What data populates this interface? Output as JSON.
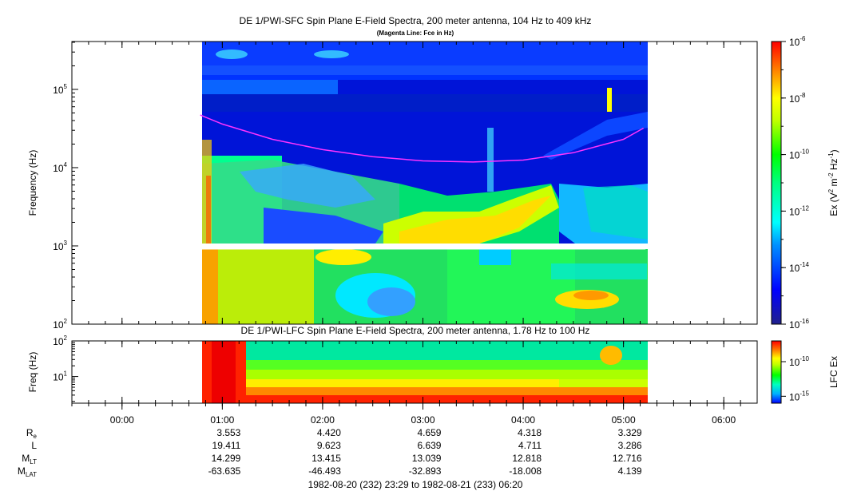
{
  "chart_data": [
    {
      "type": "heatmap",
      "title": "DE 1/PWI-SFC  Spin Plane E-Field Spectra, 200 meter antenna, 104 Hz to 409 kHz",
      "subtitle": "(Magenta Line: Fce in Hz)",
      "ylabel": "Frequency (Hz)",
      "yscale": "log",
      "ylim": [
        100,
        409000
      ],
      "y_ticks": [
        {
          "exp": "2",
          "value": 100
        },
        {
          "exp": "3",
          "value": 1000
        },
        {
          "exp": "4",
          "value": 10000
        },
        {
          "exp": "5",
          "value": 100000
        }
      ],
      "data_coverage_hours": [
        0.78,
        5.22
      ],
      "data_gap_hz": [
        900,
        1050
      ],
      "colorbar": {
        "label_pre": "Ex (V",
        "label_sup1": "2",
        "label_mid": " m",
        "label_sup2": "-2",
        "label_mid2": " Hz",
        "label_sup3": "-1",
        "label_post": ")",
        "scale": "log",
        "range": [
          1e-16,
          1e-06
        ],
        "ticks": [
          {
            "exp": "-6",
            "value": -6
          },
          {
            "exp": "-8",
            "value": -8
          },
          {
            "exp": "-10",
            "value": -10
          },
          {
            "exp": "-12",
            "value": -12
          },
          {
            "exp": "-14",
            "value": -14
          },
          {
            "exp": "-16",
            "value": -16
          }
        ]
      },
      "fce_line": {
        "color": "#ff33ff",
        "t_hours": [
          0.78,
          1.0,
          1.5,
          2.0,
          2.5,
          3.0,
          3.5,
          4.0,
          4.5,
          5.0,
          5.2
        ],
        "f_hz": [
          47000,
          36000,
          23000,
          17000,
          13800,
          12200,
          11800,
          12500,
          15500,
          23000,
          32000
        ]
      }
    },
    {
      "type": "heatmap",
      "title": "DE 1/PWI-LFC  Spin Plane E-Field Spectra, 200 meter antenna, 1.78 Hz to 100 Hz",
      "ylabel": "Freq (Hz)",
      "yscale": "log",
      "ylim": [
        1.78,
        100
      ],
      "y_ticks": [
        {
          "exp": "1",
          "value": 10
        },
        {
          "exp": "2",
          "value": 100
        }
      ],
      "colorbar": {
        "label": "LFC Ex",
        "scale": "log",
        "range": [
          1e-16,
          1e-07
        ],
        "ticks": [
          {
            "exp": "-10",
            "value": -10
          },
          {
            "exp": "-15",
            "value": -15
          }
        ]
      }
    }
  ],
  "time_axis": {
    "range_hours": [
      -0.5,
      6.333
    ],
    "ticks": [
      {
        "label": "00:00",
        "hour": 0
      },
      {
        "label": "01:00",
        "hour": 1
      },
      {
        "label": "02:00",
        "hour": 2
      },
      {
        "label": "03:00",
        "hour": 3
      },
      {
        "label": "04:00",
        "hour": 4
      },
      {
        "label": "05:00",
        "hour": 5
      },
      {
        "label": "06:00",
        "hour": 6
      }
    ]
  },
  "ephemeris": {
    "rows": [
      {
        "label": "R",
        "sub": "e",
        "values": [
          "3.553",
          "4.420",
          "4.659",
          "4.318",
          "3.329"
        ]
      },
      {
        "label": "L",
        "sub": "",
        "values": [
          "19.411",
          "9.623",
          "6.639",
          "4.711",
          "3.286"
        ]
      },
      {
        "label": "M",
        "sub": "LT",
        "values": [
          "14.299",
          "13.415",
          "13.039",
          "12.818",
          "12.716"
        ]
      },
      {
        "label": "M",
        "sub": "LAT",
        "values": [
          "-63.635",
          "-46.493",
          "-32.893",
          "-18.008",
          "4.139"
        ]
      }
    ],
    "date_range": "1982-08-20 (232) 23:29 to 1982-08-21 (233) 06:20"
  }
}
